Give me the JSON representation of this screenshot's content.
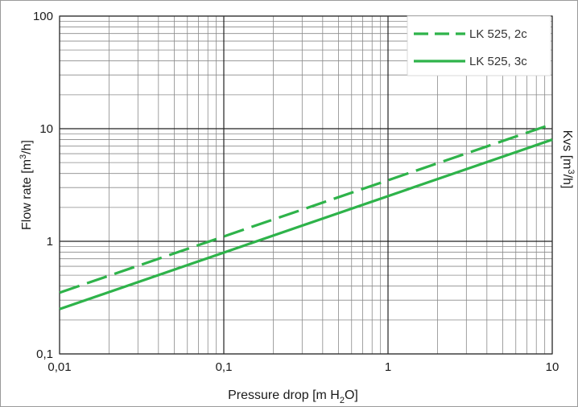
{
  "chart_data": {
    "type": "line",
    "x_scale": "log",
    "y_scale": "log",
    "xlim": [
      0.01,
      10
    ],
    "ylim": [
      0.1,
      100
    ],
    "xticks": [
      {
        "value": 0.01,
        "label": "0,01"
      },
      {
        "value": 0.1,
        "label": "0,1"
      },
      {
        "value": 1,
        "label": "1"
      },
      {
        "value": 10,
        "label": "10"
      }
    ],
    "yticks": [
      {
        "value": 0.1,
        "label": "0,1"
      },
      {
        "value": 1,
        "label": "1"
      },
      {
        "value": 10,
        "label": "10"
      },
      {
        "value": 100,
        "label": "100"
      }
    ],
    "xlabel": {
      "main": "Pressure drop [m H",
      "sub": "2",
      "tail": "O]"
    },
    "ylabel": {
      "main": "Flow rate [m",
      "sup": "3",
      "tail": "/h]"
    },
    "y2label": {
      "main": "Kvs [m",
      "sup": "3",
      "tail": "/h]"
    },
    "grid": true,
    "legend_position": "top-right",
    "series": [
      {
        "name": "LK 525, 2c",
        "style": "dashed",
        "color": "#2eb34a",
        "x": [
          0.01,
          10
        ],
        "y": [
          0.35,
          11
        ]
      },
      {
        "name": "LK 525, 3c",
        "style": "solid",
        "color": "#2eb34a",
        "x": [
          0.01,
          10
        ],
        "y": [
          0.25,
          8
        ]
      }
    ]
  }
}
